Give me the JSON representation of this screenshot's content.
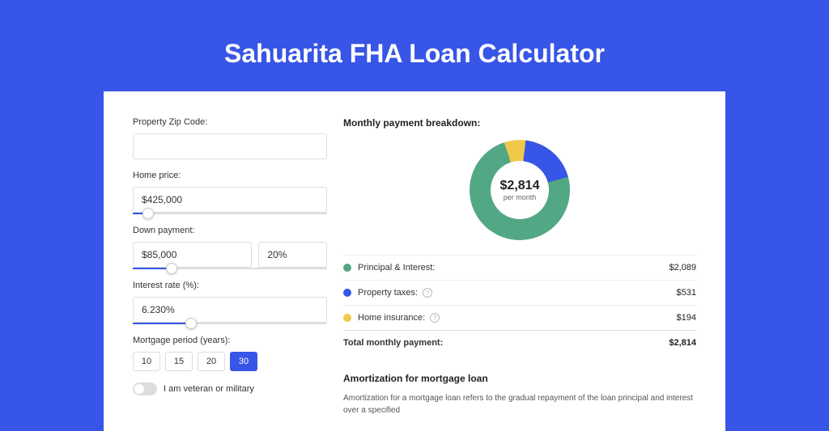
{
  "header": {
    "title": "Sahuarita FHA Loan Calculator"
  },
  "form": {
    "zip_label": "Property Zip Code:",
    "zip_value": "",
    "home_price_label": "Home price:",
    "home_price_value": "$425,000",
    "home_price_slider_pct": 8,
    "down_payment_label": "Down payment:",
    "down_payment_value": "$85,000",
    "down_payment_pct_value": "20%",
    "down_payment_slider_pct": 20,
    "interest_label": "Interest rate (%):",
    "interest_value": "6.230%",
    "interest_slider_pct": 30,
    "period_label": "Mortgage period (years):",
    "period_options": [
      "10",
      "15",
      "20",
      "30"
    ],
    "period_selected_index": 3,
    "veteran_label": "I am veteran or military"
  },
  "breakdown": {
    "title": "Monthly payment breakdown:",
    "donut": {
      "amount": "$2,814",
      "sub": "per month",
      "slices": [
        {
          "label": "Principal & Interest:",
          "value": "$2,089",
          "color": "#52a884",
          "pct": 74.2,
          "has_info": false
        },
        {
          "label": "Property taxes:",
          "value": "$531",
          "color": "#3755e6",
          "pct": 18.9,
          "has_info": true
        },
        {
          "label": "Home insurance:",
          "value": "$194",
          "color": "#f0c94a",
          "pct": 6.9,
          "has_info": true
        }
      ]
    },
    "total_label": "Total monthly payment:",
    "total_value": "$2,814"
  },
  "amortization": {
    "title": "Amortization for mortgage loan",
    "text": "Amortization for a mortgage loan refers to the gradual repayment of the loan principal and interest over a specified"
  },
  "colors": {
    "page_bg": "#3755e6",
    "card_bg": "#ffffff",
    "principal": "#52a884",
    "taxes": "#3755e6",
    "insurance": "#f0c94a"
  }
}
